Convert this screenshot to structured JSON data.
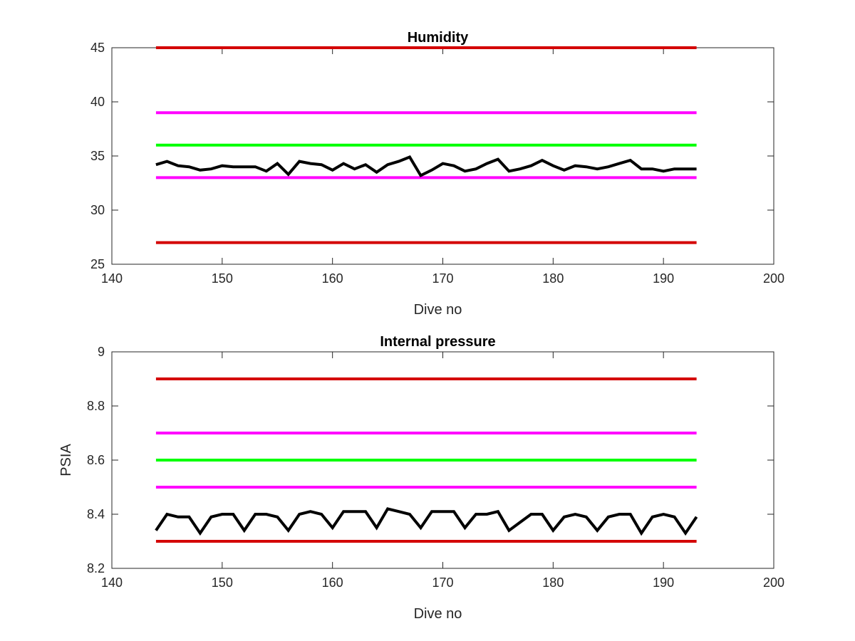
{
  "chart_data": [
    {
      "type": "line",
      "title": "Humidity",
      "xlabel": "Dive no",
      "ylabel": "",
      "xlim": [
        140,
        200
      ],
      "ylim": [
        25,
        45
      ],
      "xticks": [
        "140",
        "150",
        "160",
        "170",
        "180",
        "190",
        "200"
      ],
      "yticks": [
        "25",
        "30",
        "35",
        "40",
        "45"
      ],
      "grid": false,
      "thresholds": [
        {
          "y": 45,
          "color": "#d40000",
          "x": [
            144,
            193
          ]
        },
        {
          "y": 39,
          "color": "#ff00ff",
          "x": [
            144,
            193
          ]
        },
        {
          "y": 36,
          "color": "#00ff00",
          "x": [
            144,
            193
          ]
        },
        {
          "y": 33,
          "color": "#ff00ff",
          "x": [
            144,
            193
          ]
        },
        {
          "y": 27,
          "color": "#d40000",
          "x": [
            144,
            193
          ]
        }
      ],
      "series": [
        {
          "color": "#000000",
          "x": [
            144,
            145,
            146,
            147,
            148,
            149,
            150,
            151,
            152,
            153,
            154,
            155,
            156,
            157,
            158,
            159,
            160,
            161,
            162,
            163,
            164,
            165,
            166,
            167,
            168,
            169,
            170,
            171,
            172,
            173,
            174,
            175,
            176,
            177,
            178,
            179,
            180,
            181,
            182,
            183,
            184,
            185,
            186,
            187,
            188,
            189,
            190,
            191,
            192,
            193
          ],
          "y": [
            34.2,
            34.5,
            34.1,
            34.0,
            33.7,
            33.8,
            34.1,
            34.0,
            34.0,
            34.0,
            33.6,
            34.3,
            33.3,
            34.5,
            34.3,
            34.2,
            33.7,
            34.3,
            33.8,
            34.2,
            33.5,
            34.2,
            34.5,
            34.9,
            33.2,
            33.7,
            34.3,
            34.1,
            33.6,
            33.8,
            34.3,
            34.7,
            33.6,
            33.8,
            34.1,
            34.6,
            34.1,
            33.7,
            34.1,
            34.0,
            33.8,
            34.0,
            34.3,
            34.6,
            33.8,
            33.8,
            33.6,
            33.8,
            33.8,
            33.8
          ]
        }
      ]
    },
    {
      "type": "line",
      "title": "Internal pressure",
      "xlabel": "Dive no",
      "ylabel": "PSIA",
      "xlim": [
        140,
        200
      ],
      "ylim": [
        8.2,
        9.0
      ],
      "xticks": [
        "140",
        "150",
        "160",
        "170",
        "180",
        "190",
        "200"
      ],
      "yticks": [
        "8.2",
        "8.4",
        "8.6",
        "8.8",
        "9"
      ],
      "grid": false,
      "thresholds": [
        {
          "y": 8.9,
          "color": "#d40000",
          "x": [
            144,
            193
          ]
        },
        {
          "y": 8.7,
          "color": "#ff00ff",
          "x": [
            144,
            193
          ]
        },
        {
          "y": 8.6,
          "color": "#00ff00",
          "x": [
            144,
            193
          ]
        },
        {
          "y": 8.5,
          "color": "#ff00ff",
          "x": [
            144,
            193
          ]
        },
        {
          "y": 8.3,
          "color": "#d40000",
          "x": [
            144,
            193
          ]
        }
      ],
      "series": [
        {
          "color": "#000000",
          "x": [
            144,
            145,
            146,
            147,
            148,
            149,
            150,
            151,
            152,
            153,
            154,
            155,
            156,
            157,
            158,
            159,
            160,
            161,
            162,
            163,
            164,
            165,
            166,
            167,
            168,
            169,
            170,
            171,
            172,
            173,
            174,
            175,
            176,
            177,
            178,
            179,
            180,
            181,
            182,
            183,
            184,
            185,
            186,
            187,
            188,
            189,
            190,
            191,
            192,
            193
          ],
          "y": [
            8.34,
            8.4,
            8.39,
            8.39,
            8.33,
            8.39,
            8.4,
            8.4,
            8.34,
            8.4,
            8.4,
            8.39,
            8.34,
            8.4,
            8.41,
            8.4,
            8.35,
            8.41,
            8.41,
            8.41,
            8.35,
            8.42,
            8.41,
            8.4,
            8.35,
            8.41,
            8.41,
            8.41,
            8.35,
            8.4,
            8.4,
            8.41,
            8.34,
            8.37,
            8.4,
            8.4,
            8.34,
            8.39,
            8.4,
            8.39,
            8.34,
            8.39,
            8.4,
            8.4,
            8.33,
            8.39,
            8.4,
            8.39,
            8.33,
            8.39
          ]
        }
      ]
    }
  ]
}
